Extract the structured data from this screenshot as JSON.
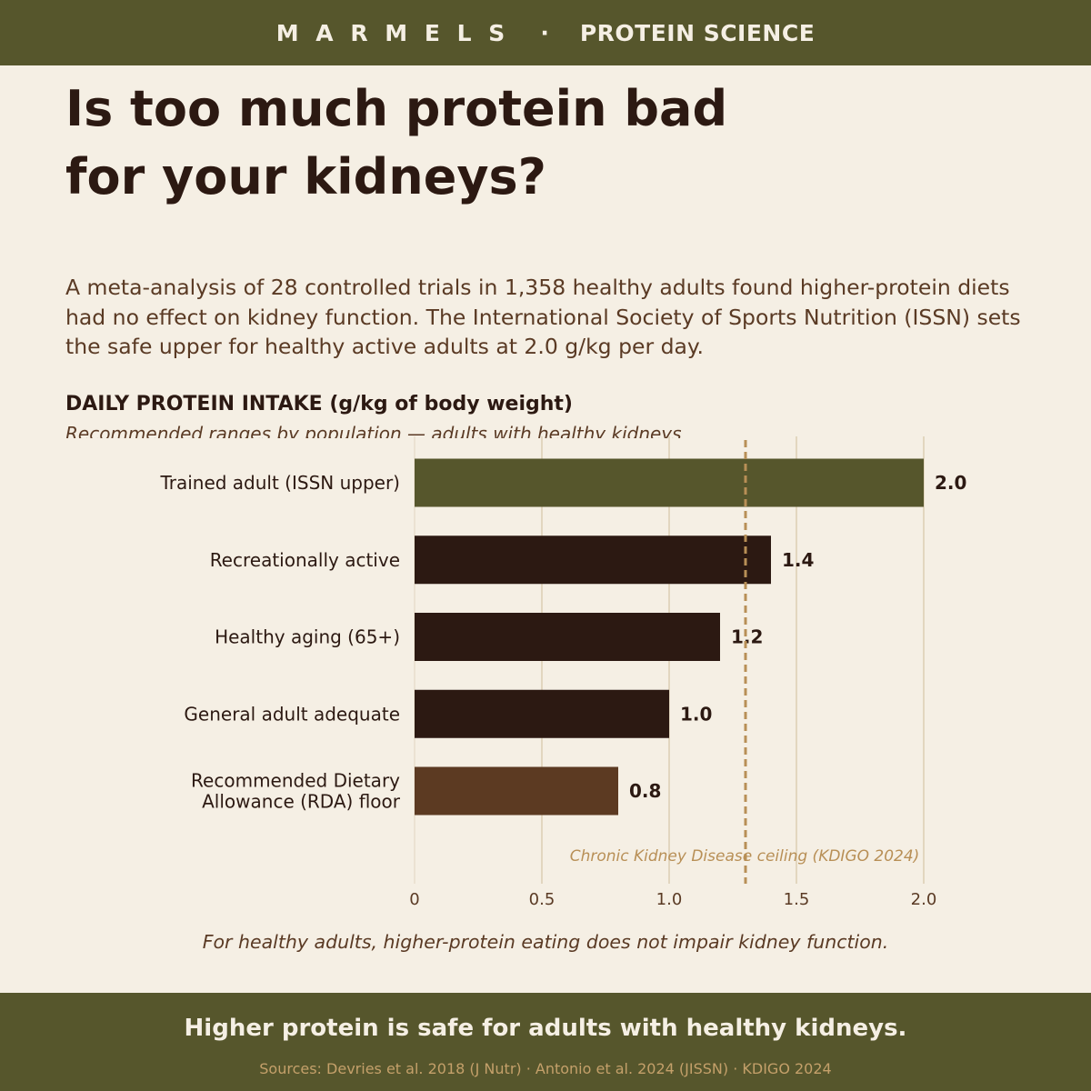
{
  "header": {
    "brand": "M A R M E L S",
    "separator": "·",
    "section": "PROTEIN SCIENCE"
  },
  "headline": {
    "line1": "Is too much protein bad",
    "line2": "for your kidneys?"
  },
  "intro": "A meta-analysis of 28 controlled trials in 1,358 healthy adults found higher-protein diets had no effect on kidney function. The International Society of Sports Nutrition (ISSN) sets the safe upper for healthy active adults at 2.0 g/kg per day.",
  "chart_data": {
    "type": "bar",
    "orientation": "horizontal",
    "title": "DAILY PROTEIN INTAKE (g/kg of body weight)",
    "subtitle": "Recommended ranges by population — adults with healthy kidneys",
    "categories": [
      "Trained adult (ISSN upper)",
      "Recreationally active",
      "Healthy aging (65+)",
      "General adult adequate",
      "Recommended Dietary Allowance (RDA) floor"
    ],
    "category_lines": [
      [
        "Trained adult (ISSN upper)"
      ],
      [
        "Recreationally active"
      ],
      [
        "Healthy aging (65+)"
      ],
      [
        "General adult adequate"
      ],
      [
        "Recommended Dietary",
        "Allowance (RDA) floor"
      ]
    ],
    "values": [
      2.0,
      1.4,
      1.2,
      1.0,
      0.8
    ],
    "value_labels": [
      "2.0",
      "1.4",
      "1.2",
      "1.0",
      "0.8"
    ],
    "bar_colors": [
      "#56562c",
      "#2c1912",
      "#2c1912",
      "#2c1912",
      "#5c3a22"
    ],
    "xlim": [
      0,
      2.0
    ],
    "xticks": [
      0,
      0.5,
      1.0,
      1.5,
      2.0
    ],
    "xtick_labels": [
      "0",
      "0.5",
      "1.0",
      "1.5",
      "2.0"
    ],
    "grid": true,
    "reference_line": {
      "value": 1.3,
      "label": "Chronic Kidney Disease ceiling (KDIGO 2024)",
      "color": "#b88f56"
    }
  },
  "takeaway": "For healthy adults, higher-protein eating does not impair kidney function.",
  "footer": {
    "headline": "Higher protein is safe for adults with healthy kidneys.",
    "sources": "Sources: Devries et al. 2018 (J Nutr)  ·  Antonio et al. 2024 (JISSN)  ·  KDIGO 2024"
  },
  "colors": {
    "olive": "#56562c",
    "background": "#f5efe4",
    "dark_brown": "#2c1912",
    "text_brown": "#5a3a24",
    "accent_tan": "#b88f56",
    "grid": "#e2d6bf"
  }
}
